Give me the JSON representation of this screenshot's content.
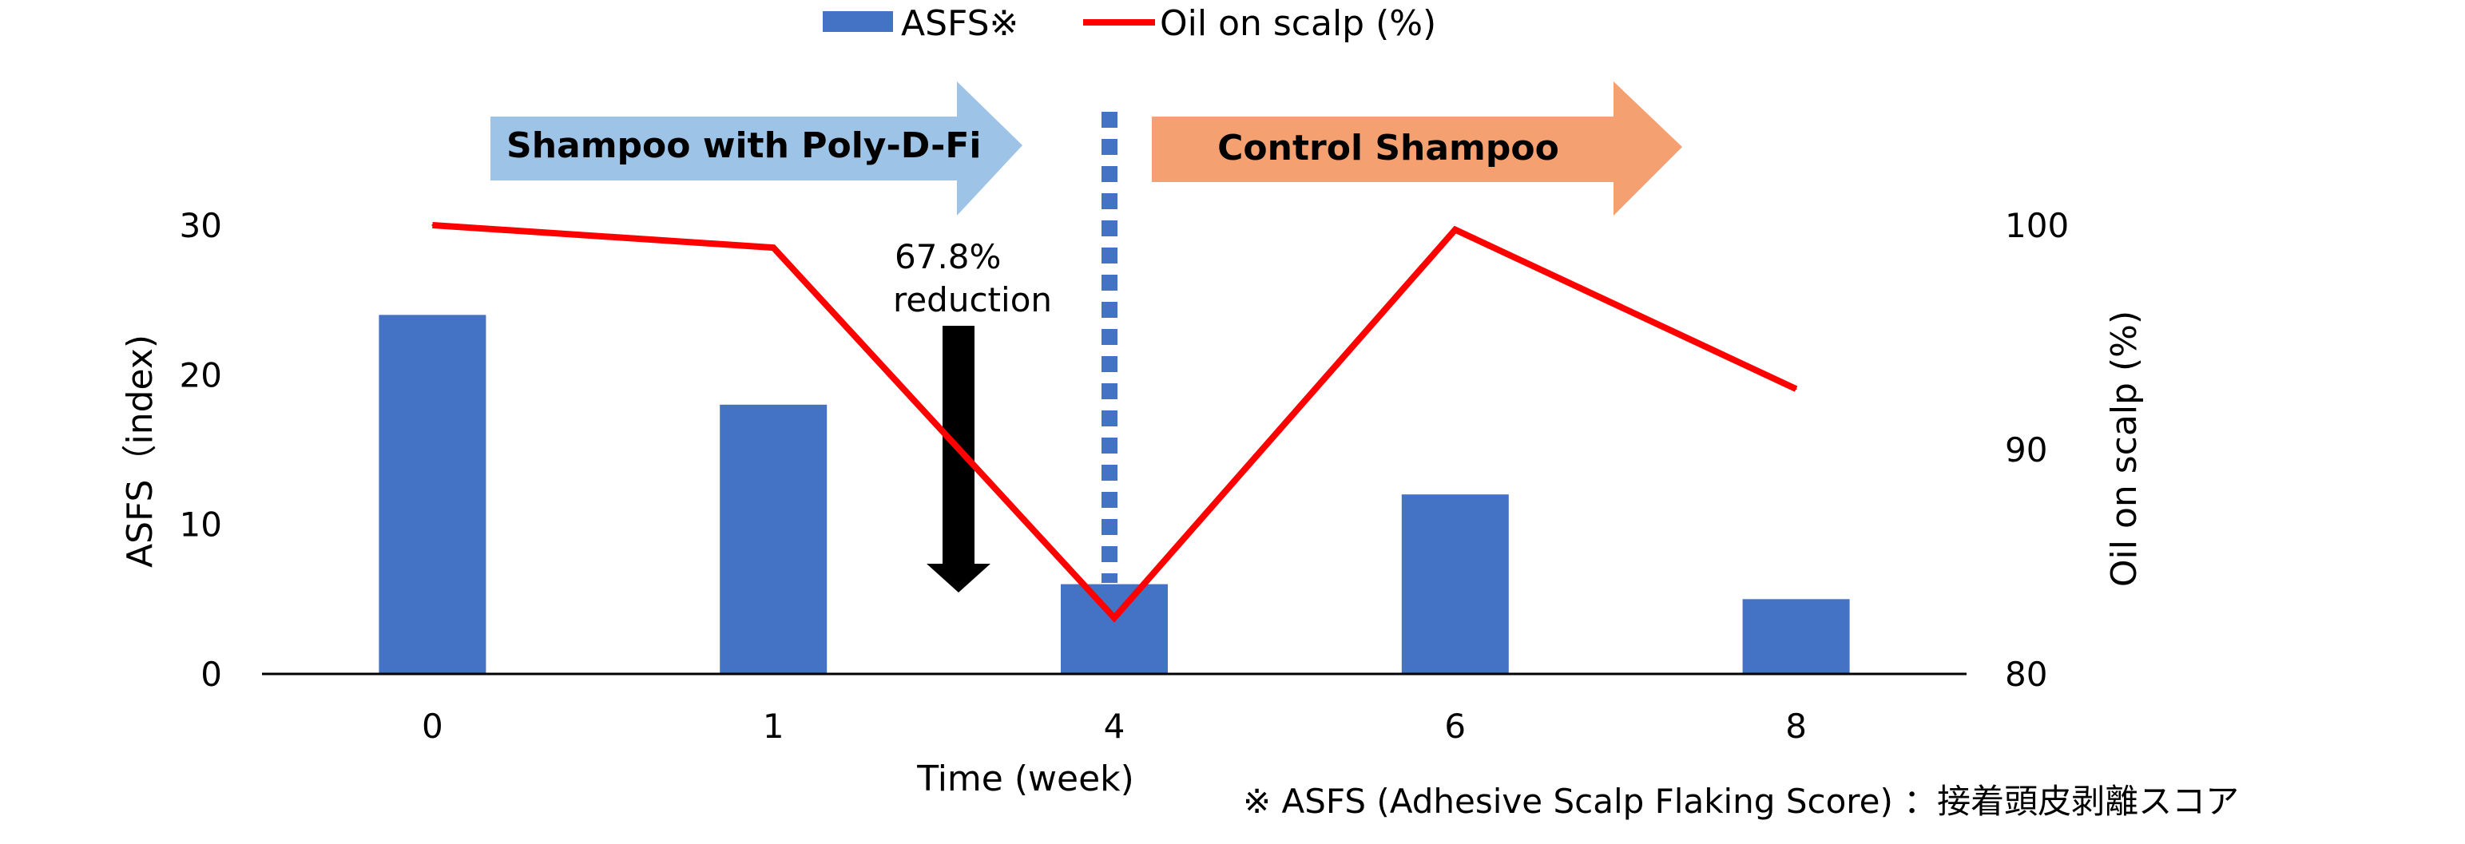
{
  "chart_data": {
    "type": "bar+line",
    "categories": [
      "0",
      "1",
      "4",
      "6",
      "8"
    ],
    "series": [
      {
        "name": "ASFS※",
        "type": "bar",
        "axis": "left",
        "color": "#4472C4",
        "values": [
          24,
          18,
          6,
          12,
          5
        ]
      },
      {
        "name": "Oil on scalp (%)",
        "type": "line",
        "axis": "right",
        "color": "#FF0000",
        "values": [
          100,
          99,
          82.5,
          99.8,
          92.7
        ]
      }
    ],
    "xlabel": "Time (week)",
    "ylabel_left": "ASFS（index)",
    "ylabel_right": "Oil on scalp (%)",
    "ylim_left": [
      0,
      30
    ],
    "ylim_right": [
      80,
      100
    ],
    "yticks_left": [
      "0",
      "10",
      "20",
      "30"
    ],
    "yticks_right": [
      "80",
      "90",
      "100"
    ],
    "grid": false,
    "legend_position": "top-center",
    "divider_after_category": "4",
    "annotations": {
      "phase1_label": "Shampoo with Poly-D-Fi",
      "phase1_color": "#9DC3E6",
      "phase2_label": "Control Shampoo",
      "phase2_color": "#F4A070",
      "reduction_line1": "67.8%",
      "reduction_line2": "reduction",
      "footnote": "※ ASFS (Adhesive Scalp Flaking Score) ：接着頭皮剥離スコア"
    }
  }
}
